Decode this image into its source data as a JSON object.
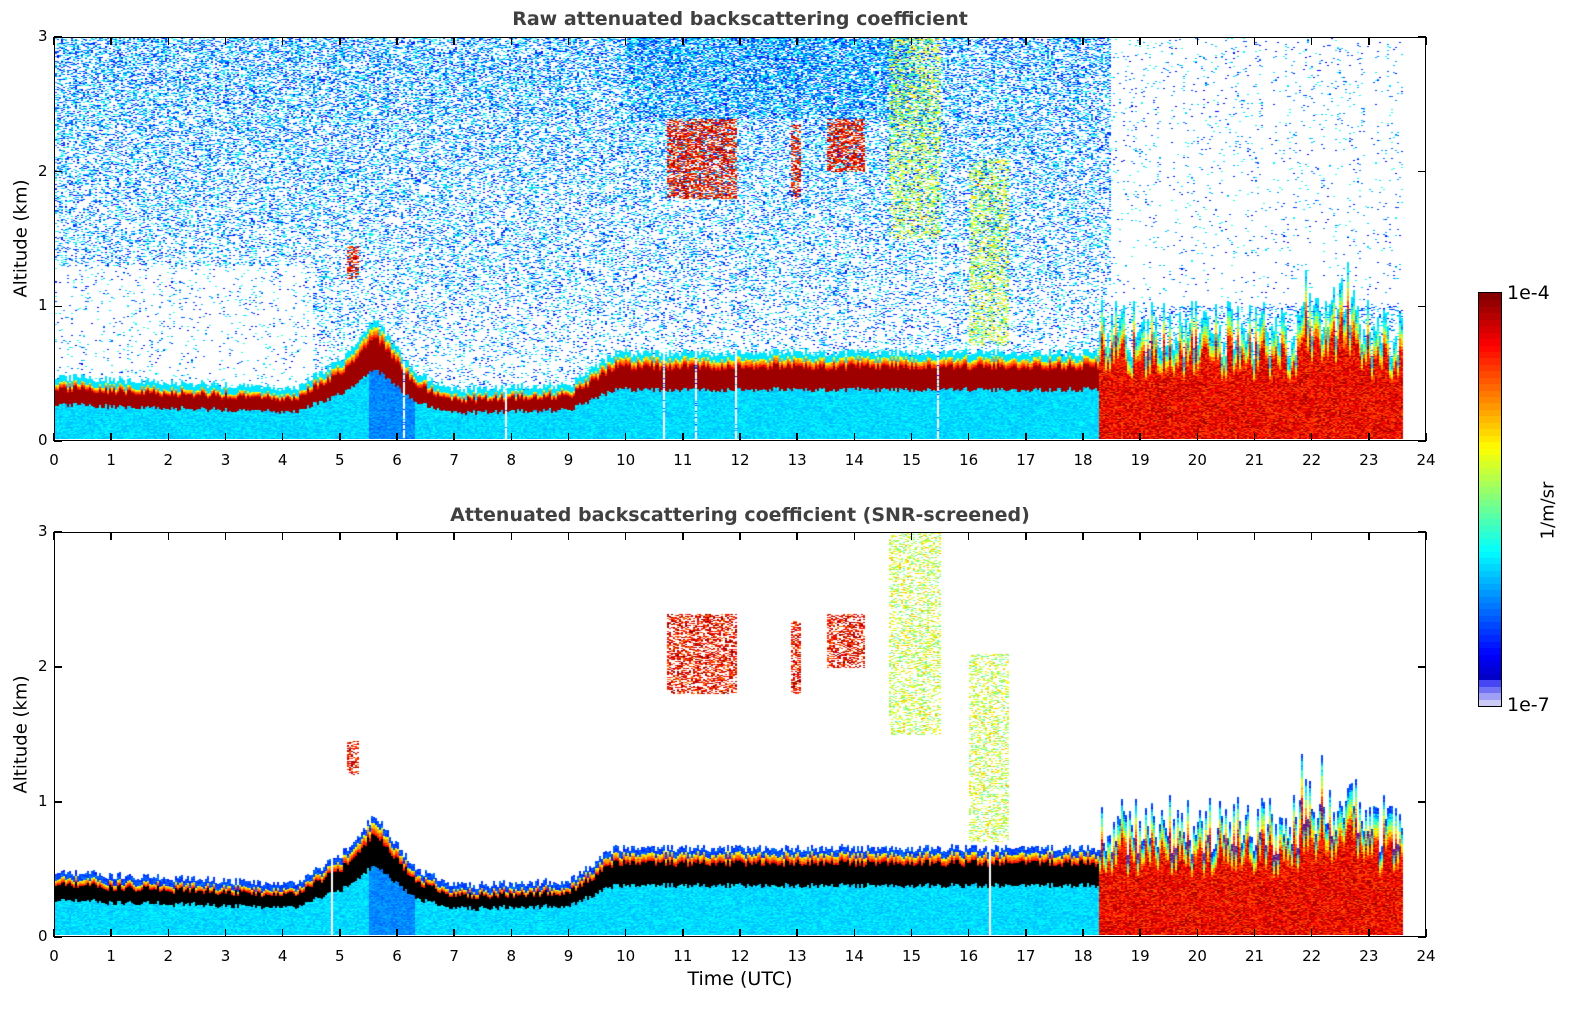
{
  "chart_data": [
    {
      "type": "heatmap",
      "title": "Raw attenuated backscattering coefficient",
      "xlabel": "",
      "ylabel": "Altitude (km)",
      "xlim": [
        0,
        24
      ],
      "ylim": [
        0,
        3
      ],
      "xticks": [
        "0",
        "1",
        "2",
        "3",
        "4",
        "5",
        "6",
        "7",
        "8",
        "9",
        "10",
        "11",
        "12",
        "13",
        "14",
        "15",
        "16",
        "17",
        "18",
        "19",
        "20",
        "21",
        "22",
        "23",
        "24"
      ],
      "yticks": [
        "0",
        "1",
        "2",
        "3"
      ],
      "screened": false,
      "data_end_time": 23.6,
      "background_noise": "dense noise above boundary layer, blue/cyan speckle increasing with altitude; sparse before 4 UTC below 1.3 km and after 18.5 UTC above 1 km",
      "features": [
        {
          "name": "boundary-layer-top",
          "time": [
            0,
            4.2,
            5.0,
            5.6,
            6.3,
            7.0,
            9.0,
            9.8,
            18.3
          ],
          "top_km": [
            0.42,
            0.33,
            0.55,
            0.85,
            0.45,
            0.32,
            0.36,
            0.6,
            0.6
          ]
        },
        {
          "name": "cloud-5.2",
          "time": [
            5.1,
            5.3
          ],
          "alt_km": [
            1.2,
            1.45
          ],
          "intensity": "high"
        },
        {
          "name": "cloud-10.8-11.9",
          "time": [
            10.7,
            11.95
          ],
          "alt_km": [
            1.8,
            2.4
          ],
          "intensity": "high"
        },
        {
          "name": "cloud-12.9-13.0",
          "time": [
            12.9,
            13.05
          ],
          "alt_km": [
            1.8,
            2.35
          ],
          "intensity": "high"
        },
        {
          "name": "cloud-13.5-14.2",
          "time": [
            13.5,
            14.2
          ],
          "alt_km": [
            2.0,
            2.4
          ],
          "intensity": "high"
        },
        {
          "name": "virga-14.6-15.5",
          "time": [
            14.6,
            15.5
          ],
          "alt_km": [
            1.5,
            3.0
          ],
          "intensity": "medium"
        },
        {
          "name": "virga-16.0-16.7",
          "time": [
            16.0,
            16.7
          ],
          "alt_km": [
            0.7,
            2.1
          ],
          "intensity": "medium"
        },
        {
          "name": "night-layer-18.3-23.6",
          "time": [
            18.3,
            23.6
          ],
          "alt_km": [
            0,
            1.2
          ],
          "intensity": "high"
        }
      ]
    },
    {
      "type": "heatmap",
      "title": "Attenuated backscattering coefficient (SNR-screened)",
      "xlabel": "Time (UTC)",
      "ylabel": "Altitude (km)",
      "xlim": [
        0,
        24
      ],
      "ylim": [
        0,
        3
      ],
      "xticks": [
        "0",
        "1",
        "2",
        "3",
        "4",
        "5",
        "6",
        "7",
        "8",
        "9",
        "10",
        "11",
        "12",
        "13",
        "14",
        "15",
        "16",
        "17",
        "18",
        "19",
        "20",
        "21",
        "22",
        "23",
        "24"
      ],
      "yticks": [
        "0",
        "1",
        "2",
        "3"
      ],
      "screened": true,
      "data_end_time": 23.6,
      "note": "noise removed; saturated core of boundary layer shown in black"
    }
  ],
  "colorbar": {
    "label": "1/m/sr",
    "max_label": "1e-4",
    "min_label": "1e-7",
    "vmin": 1e-07,
    "vmax": 0.0001,
    "scale": "log",
    "colormap": "jet"
  },
  "colors": {
    "title": "#404040",
    "axis": "#000000",
    "saturated": "#000000"
  }
}
